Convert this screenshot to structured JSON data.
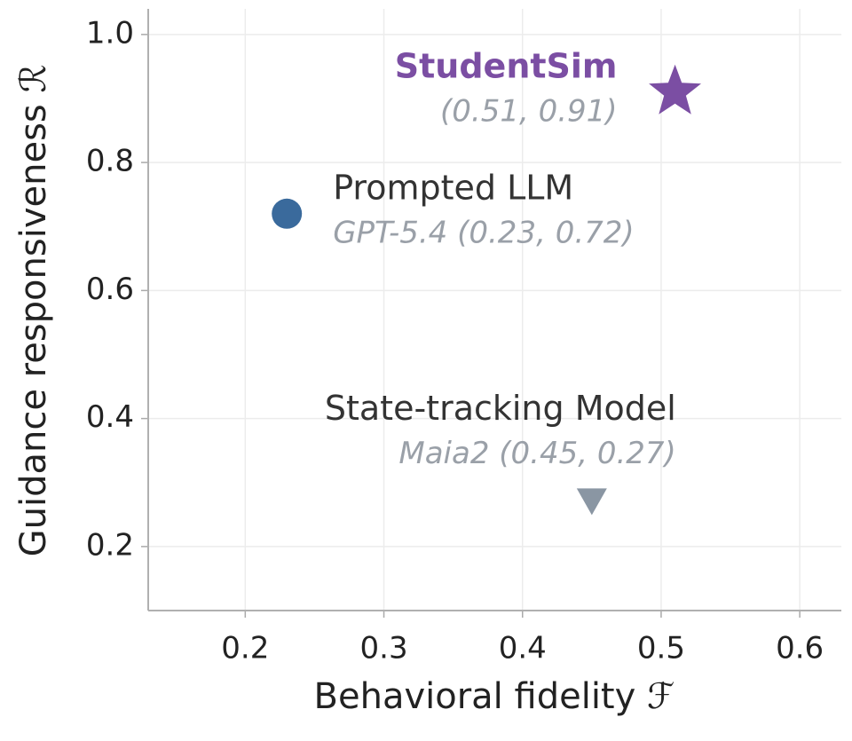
{
  "chart_data": {
    "type": "scatter",
    "xlabel": "Behavioral fidelity  ℱ",
    "ylabel": "Guidance responsiveness  ℛ",
    "xlim": [
      0.13,
      0.63
    ],
    "xticks": [
      0.2,
      0.3,
      0.4,
      0.5,
      0.6
    ],
    "ylim": [
      0.1,
      1.04
    ],
    "yticks": [
      0.2,
      0.4,
      0.6,
      0.8,
      {
        "value": 1.0,
        "label": "1.0"
      }
    ],
    "grid": true,
    "series": [
      {
        "name": "StudentSim",
        "color": "#7b4ea3",
        "marker": "star",
        "x": [
          0.51
        ],
        "values": [
          0.91
        ],
        "value_labels": [
          "(0.51, 0.91)"
        ]
      },
      {
        "name": "Prompted LLM",
        "color": "#3a6a9c",
        "marker": "circle",
        "x": [
          0.23
        ],
        "values": [
          0.72
        ],
        "value_labels": [
          "GPT-5.4 (0.23, 0.72)"
        ]
      },
      {
        "name": "State-tracking Model",
        "color": "#8a96a3",
        "marker": "triangle-down",
        "x": [
          0.45
        ],
        "values": [
          0.27
        ],
        "value_labels": [
          "Maia2 (0.45, 0.27)"
        ]
      }
    ]
  }
}
